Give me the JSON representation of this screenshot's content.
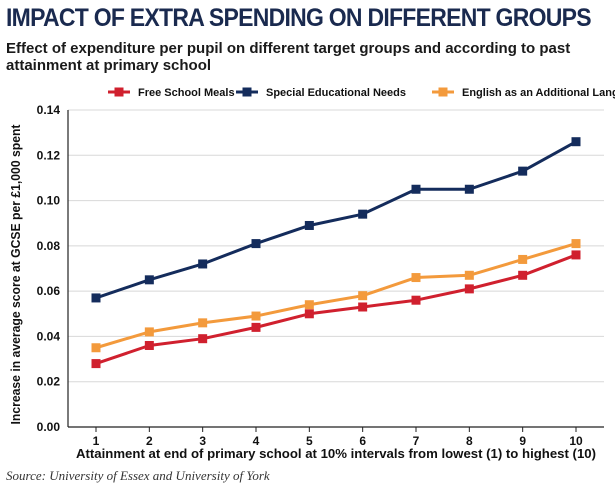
{
  "header": {
    "title": "IMPACT OF EXTRA SPENDING ON DIFFERENT GROUPS",
    "subtitle": "Effect of expenditure per pupil on different target groups and according to past attainment at primary school"
  },
  "footer": {
    "source": "Source: University of Essex and University of York"
  },
  "colors": {
    "title": "#1a2a4f",
    "axis": "#222222",
    "grid": "#d8d8d8"
  },
  "chart_data": {
    "type": "line",
    "title": "Effect of expenditure per pupil on different target groups and according to past attainment at primary school",
    "xlabel": "Attainment at end of primary school at 10% intervals from lowest (1) to highest (10)",
    "ylabel": "Increase in average score at GCSE per £1,000 spent",
    "x": [
      1,
      2,
      3,
      4,
      5,
      6,
      7,
      8,
      9,
      10
    ],
    "x_tick_labels": [
      "1",
      "2",
      "3",
      "4",
      "5",
      "6",
      "7",
      "8",
      "9",
      "10"
    ],
    "ylim": [
      0,
      0.14
    ],
    "y_ticks": [
      0,
      0.02,
      0.04,
      0.06,
      0.08,
      0.1,
      0.12,
      0.14
    ],
    "y_tick_labels": [
      "0.00",
      "0.02",
      "0.04",
      "0.06",
      "0.08",
      "0.10",
      "0.12",
      "0.14"
    ],
    "grid": true,
    "legend_position": "top",
    "series": [
      {
        "name": "Free School Meals",
        "color": "#d0202e",
        "values": [
          0.028,
          0.036,
          0.039,
          0.044,
          0.05,
          0.053,
          0.056,
          0.061,
          0.067,
          0.076
        ]
      },
      {
        "name": "Special Educational Needs",
        "color": "#142c5c",
        "values": [
          0.057,
          0.065,
          0.072,
          0.081,
          0.089,
          0.094,
          0.105,
          0.105,
          0.113,
          0.126
        ]
      },
      {
        "name": "English as an Additional Language",
        "color": "#f39a3c",
        "values": [
          0.035,
          0.042,
          0.046,
          0.049,
          0.054,
          0.058,
          0.066,
          0.067,
          0.074,
          0.081
        ]
      }
    ]
  }
}
